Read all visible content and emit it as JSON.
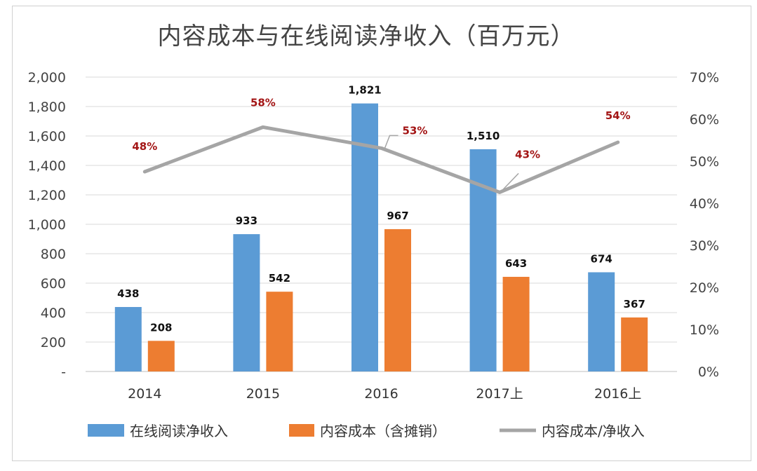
{
  "chart_data": {
    "type": "bar",
    "title": "内容成本与在线阅读净收入（百万元）",
    "categories": [
      "2014",
      "2015",
      "2016",
      "2017上",
      "2016上"
    ],
    "series": [
      {
        "name": "在线阅读净收入",
        "type": "bar",
        "color": "#5b9bd5",
        "values": [
          438,
          933,
          1821,
          1510,
          674
        ],
        "labels": [
          "438",
          "933",
          "1,821",
          "1,510",
          "674"
        ]
      },
      {
        "name": "内容成本（含摊销）",
        "type": "bar",
        "color": "#ed7d31",
        "values": [
          208,
          542,
          967,
          643,
          367
        ],
        "labels": [
          "208",
          "542",
          "967",
          "643",
          "367"
        ]
      },
      {
        "name": "内容成本/净收入",
        "type": "line",
        "axis": "right",
        "color": "#a5a5a5",
        "values": [
          47.5,
          58.1,
          53.1,
          42.6,
          54.5
        ],
        "labels": [
          "48%",
          "58%",
          "53%",
          "43%",
          "54%"
        ]
      }
    ],
    "left_axis": {
      "min": 0,
      "max": 2000,
      "step": 200,
      "tick_labels": [
        "-",
        "200",
        "400",
        "600",
        "800",
        "1,000",
        "1,200",
        "1,400",
        "1,600",
        "1,800",
        "2,000"
      ]
    },
    "right_axis": {
      "min": 0,
      "max": 70,
      "step": 10,
      "tick_labels": [
        "0%",
        "10%",
        "20%",
        "30%",
        "40%",
        "50%",
        "60%",
        "70%"
      ]
    },
    "grid": true,
    "legend": "bottom",
    "label_color_pct": "#a31515"
  }
}
